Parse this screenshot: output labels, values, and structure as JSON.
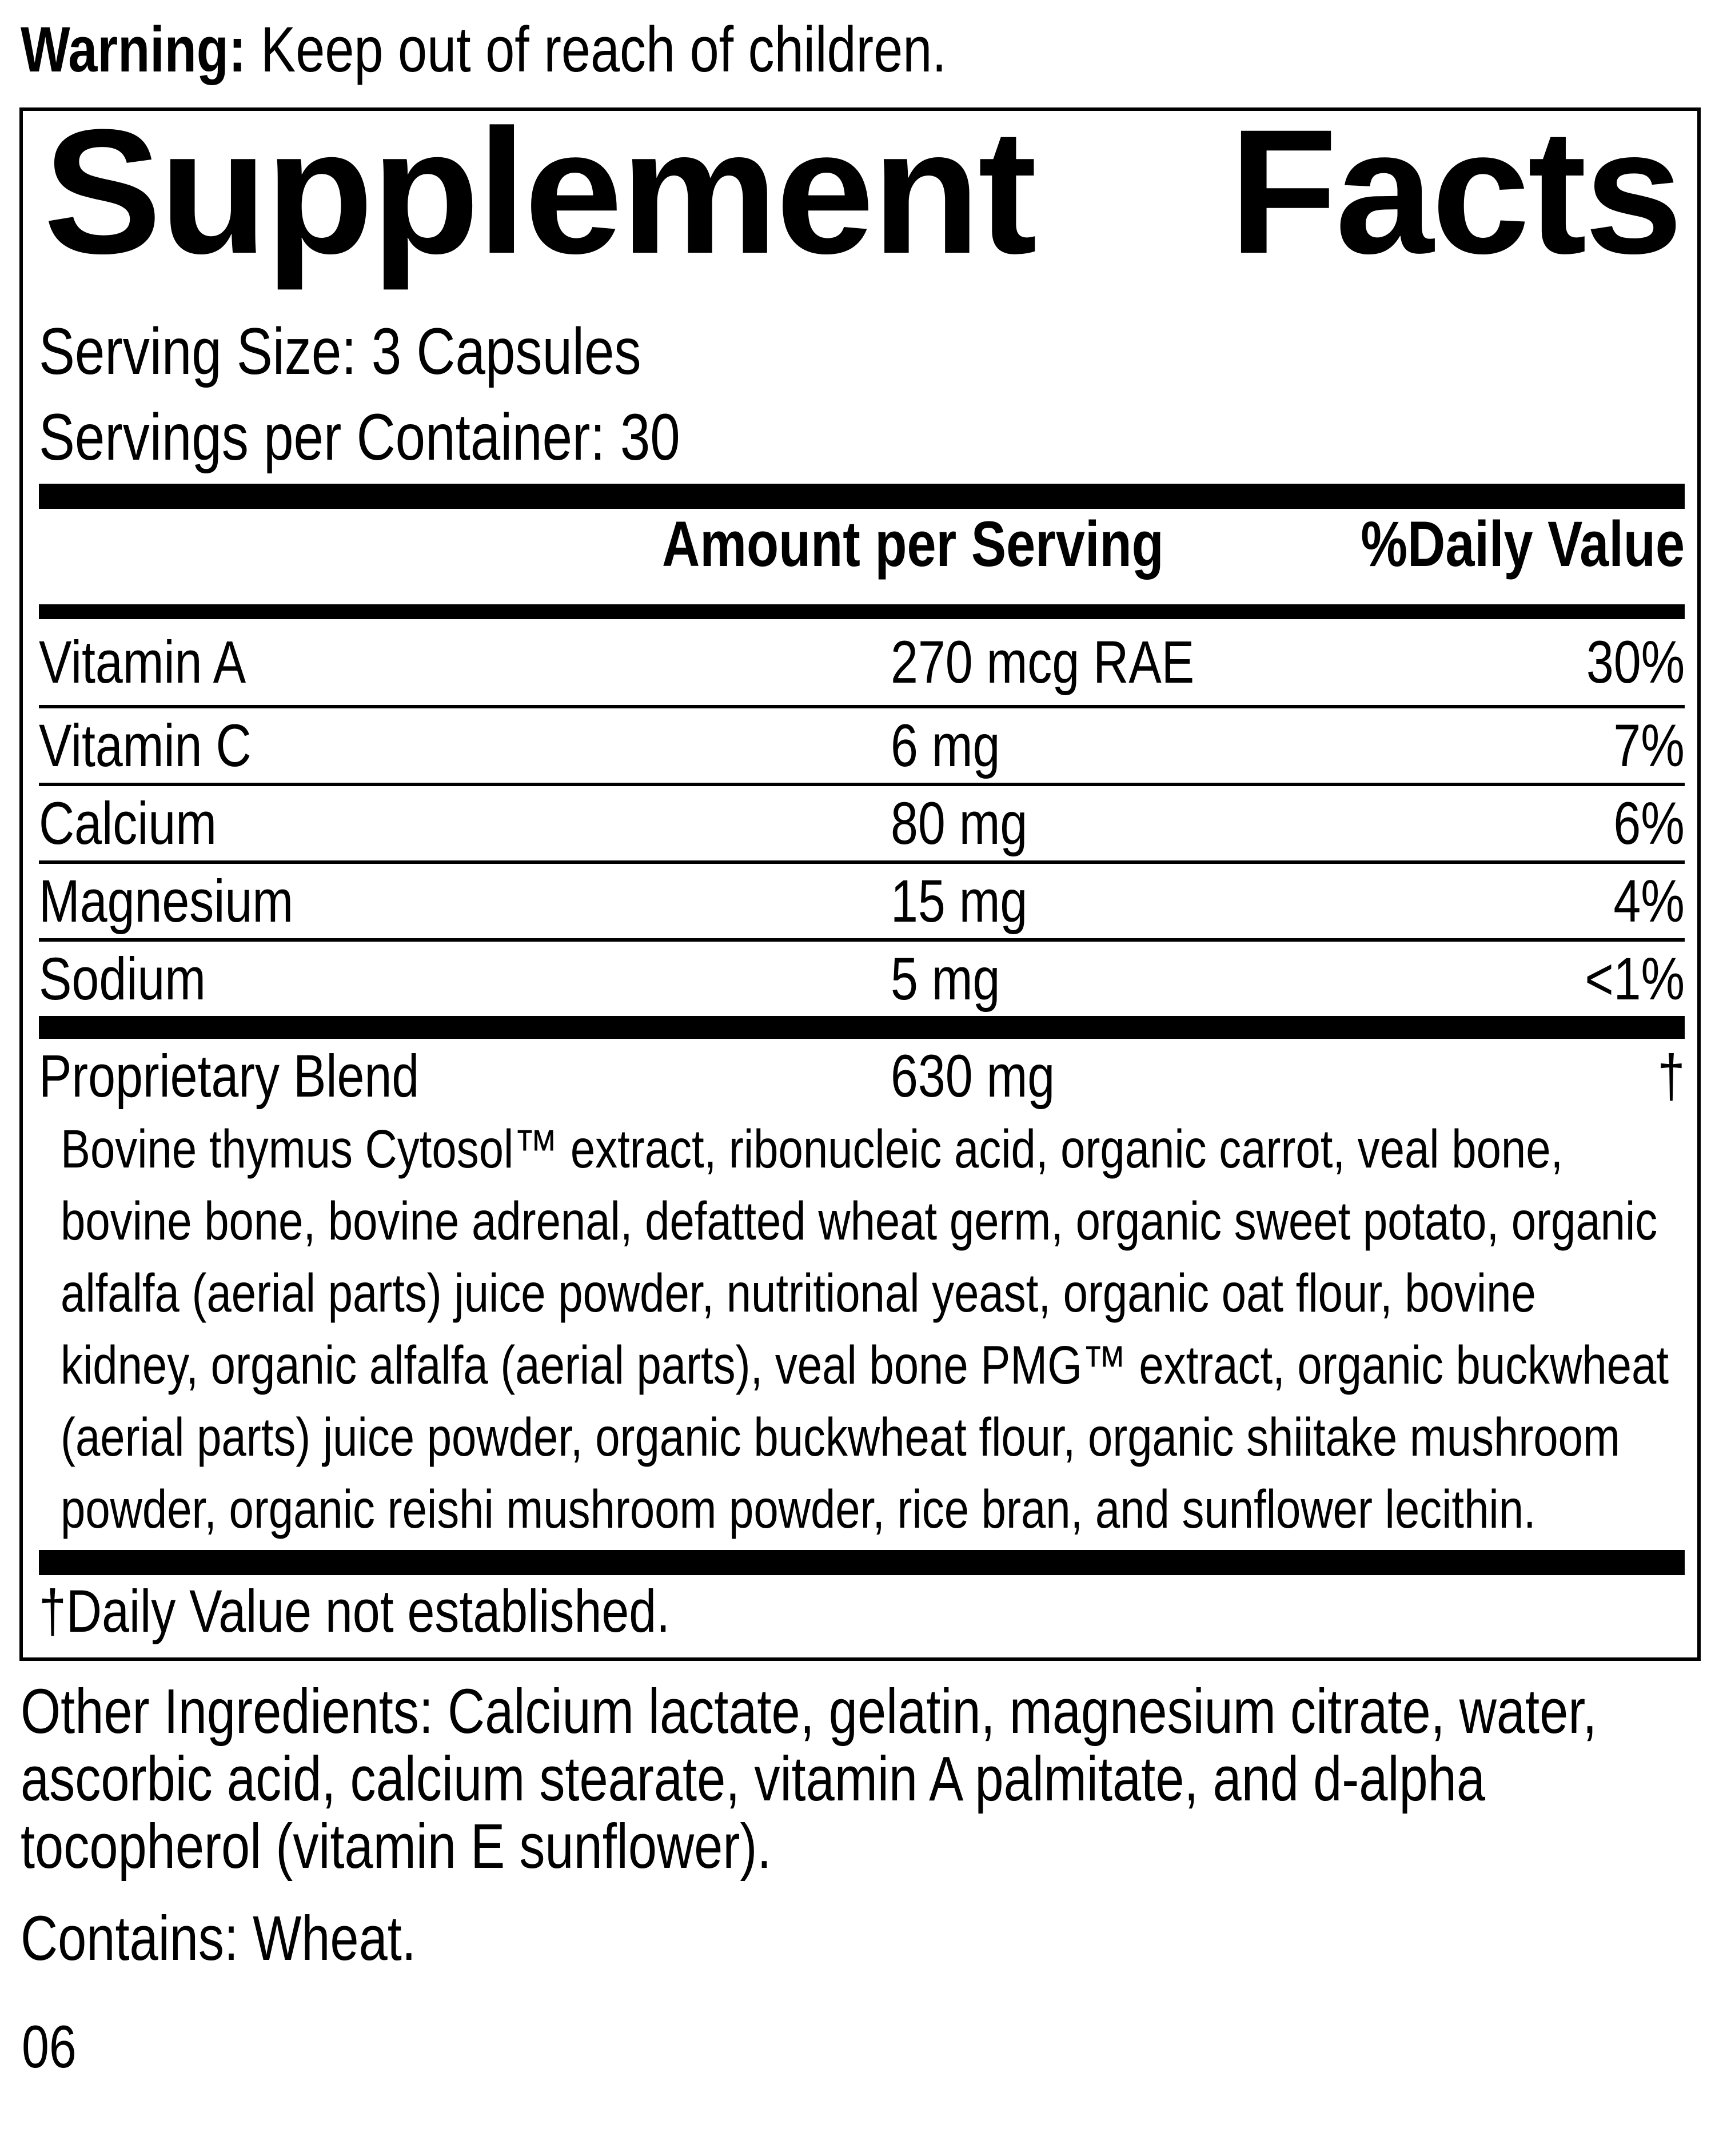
{
  "warning": {
    "label": "Warning:",
    "text": "Keep out of reach of children."
  },
  "panel": {
    "title_words": [
      "Supplement",
      "Facts"
    ],
    "serving_size": "Serving Size: 3 Capsules",
    "servings_per_container": "Servings per Container: 30",
    "columns": {
      "amount_header": "Amount per Serving",
      "dv_header": "%Daily Value"
    },
    "nutrients": [
      {
        "name": "Vitamin A",
        "amount": "270 mcg RAE",
        "dv": "30%"
      },
      {
        "name": "Vitamin C",
        "amount": "6 mg",
        "dv": "7%"
      },
      {
        "name": "Calcium",
        "amount": "80 mg",
        "dv": "6%"
      },
      {
        "name": "Magnesium",
        "amount": "15 mg",
        "dv": "4%"
      },
      {
        "name": "Sodium",
        "amount": "5 mg",
        "dv": "<1%"
      }
    ],
    "blend": {
      "name": "Proprietary Blend",
      "amount": "630 mg",
      "dv": "†",
      "description": "Bovine thymus Cytosol™ extract, ribonucleic acid, organic carrot, veal bone, bovine bone, bovine adrenal, defatted wheat germ, organic sweet potato, organic alfalfa (aerial parts) juice powder, nutritional yeast, organic oat flour, bovine kidney, organic alfalfa (aerial parts), veal bone PMG™ extract, organic buckwheat (aerial parts) juice powder, organic buckwheat flour, organic shiitake mushroom powder, organic reishi mushroom powder, rice bran, and sunflower lecithin."
    },
    "footnote": "†Daily Value not established."
  },
  "other_ingredients": "Other Ingredients: Calcium lactate, gelatin, magnesium citrate, water, ascorbic acid, calcium stearate, vitamin A palmitate, and d-alpha tocopherol (vitamin E sunflower).",
  "contains": "Contains: Wheat.",
  "code": "06",
  "colors": {
    "ink": "#000000",
    "background": "#ffffff"
  }
}
